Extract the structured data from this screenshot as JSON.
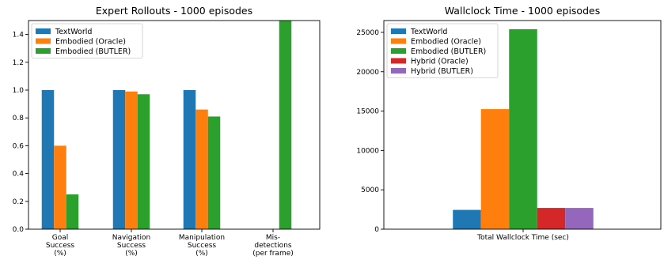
{
  "chart_data": [
    {
      "type": "bar",
      "title": "Expert Rollouts - 1000 episodes",
      "xlabel": "",
      "ylabel": "",
      "ylim": [
        0,
        1.5
      ],
      "yticks": [
        "0.0",
        "0.2",
        "0.4",
        "0.6",
        "0.8",
        "1.0",
        "1.2",
        "1.4"
      ],
      "categories": [
        [
          "Goal",
          "Success",
          "(%)"
        ],
        [
          "Navigation",
          "Success",
          "(%)"
        ],
        [
          "Manipulation",
          "Success",
          "(%)"
        ],
        [
          "Mis-",
          "detections",
          "(per frame)"
        ]
      ],
      "series": [
        {
          "name": "TextWorld",
          "color": "#1f77b4",
          "values": [
            1.0,
            1.0,
            1.0,
            0
          ]
        },
        {
          "name": "Embodied (Oracle)",
          "color": "#ff7f0e",
          "values": [
            0.6,
            0.99,
            0.86,
            0
          ]
        },
        {
          "name": "Embodied (BUTLER)",
          "color": "#2ca02c",
          "values": [
            0.25,
            0.97,
            0.81,
            1.5
          ]
        }
      ],
      "legend": "top-left",
      "grid": false
    },
    {
      "type": "bar",
      "title": "Wallclock Time - 1000 episodes",
      "xlabel": "",
      "ylabel": "",
      "ylim": [
        0,
        26500
      ],
      "yticks": [
        "0",
        "5000",
        "10000",
        "15000",
        "20000",
        "25000"
      ],
      "categories": [
        [
          "Total Wallclock Time (sec)"
        ]
      ],
      "series": [
        {
          "name": "TextWorld",
          "color": "#1f77b4",
          "values": [
            2450
          ]
        },
        {
          "name": "Embodied (Oracle)",
          "color": "#ff7f0e",
          "values": [
            15250
          ]
        },
        {
          "name": "Embodied (BUTLER)",
          "color": "#2ca02c",
          "values": [
            25400
          ]
        },
        {
          "name": "Hybrid (Oracle)",
          "color": "#d62728",
          "values": [
            2700
          ]
        },
        {
          "name": "Hybrid (BUTLER)",
          "color": "#9467bd",
          "values": [
            2700
          ]
        }
      ],
      "legend": "top-left",
      "grid": false
    }
  ]
}
